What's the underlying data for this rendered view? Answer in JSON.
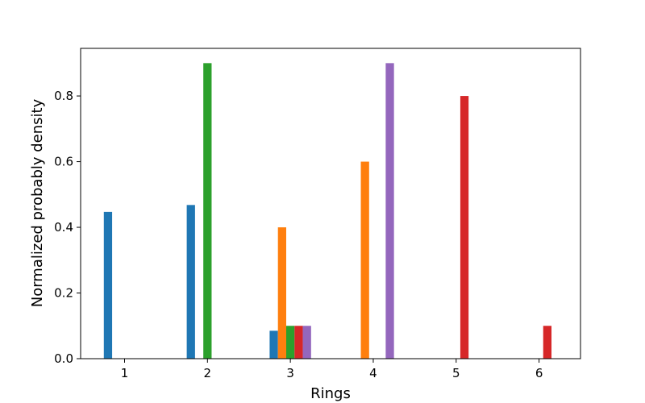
{
  "chart_data": {
    "type": "bar",
    "xlabel": "Rings",
    "ylabel": "Normalized probably density",
    "x_ticks": [
      1,
      2,
      3,
      4,
      5,
      6
    ],
    "y_ticks": [
      "0.0",
      "0.2",
      "0.4",
      "0.6",
      "0.8"
    ],
    "xlim": [
      0.47,
      6.5
    ],
    "ylim": [
      0,
      0.945
    ],
    "grid": false,
    "series": [
      {
        "color": "#1f77b4",
        "points": [
          [
            0.8,
            0.447
          ],
          [
            1.8,
            0.468
          ],
          [
            2.8,
            0.085
          ]
        ]
      },
      {
        "color": "#ff7f0e",
        "points": [
          [
            2.9,
            0.4
          ],
          [
            3.9,
            0.6
          ]
        ]
      },
      {
        "color": "#2ca02c",
        "points": [
          [
            2.0,
            0.9
          ],
          [
            3.0,
            0.1
          ]
        ]
      },
      {
        "color": "#d62728",
        "points": [
          [
            3.1,
            0.1
          ],
          [
            5.1,
            0.8
          ],
          [
            6.1,
            0.1
          ]
        ]
      },
      {
        "color": "#9467bd",
        "points": [
          [
            3.2,
            0.1
          ],
          [
            4.2,
            0.9
          ]
        ]
      }
    ]
  }
}
